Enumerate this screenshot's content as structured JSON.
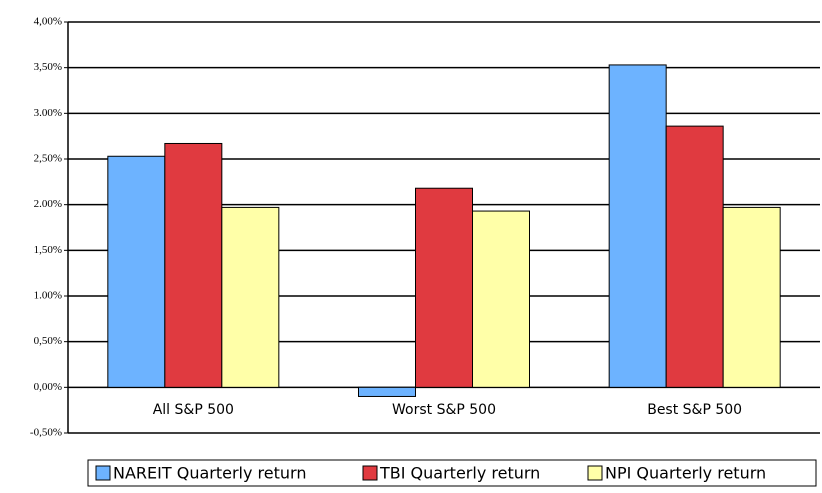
{
  "chart_data": {
    "type": "bar",
    "categories": [
      "All S&P 500",
      "Worst S&P 500",
      "Best S&P 500"
    ],
    "series": [
      {
        "name": "NAREIT Quarterly return",
        "color": "#6db3ff",
        "values": [
          2.53,
          -0.1,
          3.53
        ]
      },
      {
        "name": "TBI Quarterly return",
        "color": "#e03a40",
        "values": [
          2.67,
          2.18,
          2.86
        ]
      },
      {
        "name": "NPI Quarterly return",
        "color": "#ffffa8",
        "values": [
          1.97,
          1.93,
          1.97
        ]
      }
    ],
    "ylim": [
      -0.5,
      4.0
    ],
    "yticks": [
      {
        "value": -0.5,
        "label": "-0,50%"
      },
      {
        "value": 0,
        "label": "0,00%"
      },
      {
        "value": 0.5,
        "label": "0,50%"
      },
      {
        "value": 1.0,
        "label": "1.00%"
      },
      {
        "value": 1.5,
        "label": "1,50%"
      },
      {
        "value": 2.0,
        "label": "2.00%"
      },
      {
        "value": 2.5,
        "label": "2,50%"
      },
      {
        "value": 3.0,
        "label": "3.00%"
      },
      {
        "value": 3.5,
        "label": "3,50%"
      },
      {
        "value": 4.0,
        "label": "4,00%"
      }
    ],
    "grid": true,
    "legend": "bottom"
  }
}
